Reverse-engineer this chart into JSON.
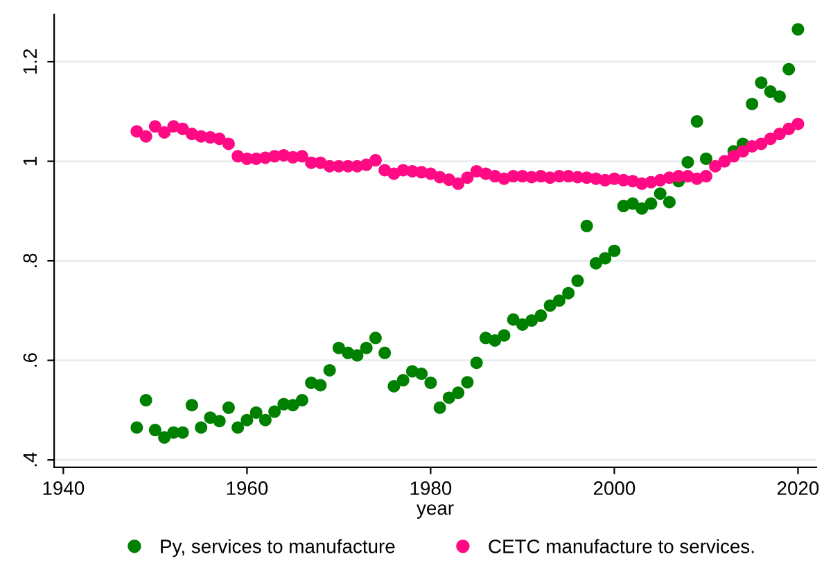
{
  "chart_data": {
    "type": "scatter",
    "xlabel": "year",
    "x": [
      1948,
      1949,
      1950,
      1951,
      1952,
      1953,
      1954,
      1955,
      1956,
      1957,
      1958,
      1959,
      1960,
      1961,
      1962,
      1963,
      1964,
      1965,
      1966,
      1967,
      1968,
      1969,
      1970,
      1971,
      1972,
      1973,
      1974,
      1975,
      1976,
      1977,
      1978,
      1979,
      1980,
      1981,
      1982,
      1983,
      1984,
      1985,
      1986,
      1987,
      1988,
      1989,
      1990,
      1991,
      1992,
      1993,
      1994,
      1995,
      1996,
      1997,
      1998,
      1999,
      2000,
      2001,
      2002,
      2003,
      2004,
      2005,
      2006,
      2007,
      2008,
      2009,
      2010,
      2011,
      2012,
      2013,
      2014,
      2015,
      2016,
      2017,
      2018,
      2019,
      2020
    ],
    "series": [
      {
        "name": "Py, services to manufacture",
        "color": "#008000",
        "values": [
          0.465,
          0.52,
          0.46,
          0.445,
          0.455,
          0.455,
          0.51,
          0.465,
          0.485,
          0.478,
          0.505,
          0.465,
          0.48,
          0.495,
          0.48,
          0.497,
          0.512,
          0.51,
          0.52,
          0.555,
          0.55,
          0.58,
          0.625,
          0.615,
          0.61,
          0.625,
          0.645,
          0.615,
          0.548,
          0.56,
          0.578,
          0.573,
          0.555,
          0.505,
          0.525,
          0.535,
          0.556,
          0.595,
          0.645,
          0.64,
          0.65,
          0.682,
          0.672,
          0.68,
          0.69,
          0.71,
          0.72,
          0.735,
          0.76,
          0.87,
          0.795,
          0.805,
          0.82,
          0.91,
          0.915,
          0.905,
          0.915,
          0.935,
          0.918,
          0.96,
          0.998,
          1.08,
          1.005,
          null,
          null,
          1.02,
          1.035,
          1.115,
          1.158,
          1.14,
          1.13,
          1.185,
          1.265
        ]
      },
      {
        "name": "CETC manufacture to services.",
        "color": "#ff0a84",
        "values": [
          1.06,
          1.05,
          1.07,
          1.058,
          1.07,
          1.065,
          1.055,
          1.05,
          1.048,
          1.045,
          1.035,
          1.01,
          1.005,
          1.005,
          1.007,
          1.01,
          1.012,
          1.008,
          1.01,
          0.997,
          0.997,
          0.99,
          0.99,
          0.99,
          0.99,
          0.993,
          1.002,
          0.982,
          0.975,
          0.982,
          0.98,
          0.978,
          0.975,
          0.968,
          0.963,
          0.955,
          0.967,
          0.98,
          0.975,
          0.97,
          0.965,
          0.97,
          0.97,
          0.968,
          0.97,
          0.967,
          0.97,
          0.97,
          0.968,
          0.967,
          0.965,
          0.962,
          0.965,
          0.962,
          0.96,
          0.955,
          0.958,
          0.962,
          0.967,
          0.97,
          0.97,
          0.965,
          0.97,
          0.99,
          1.0,
          1.01,
          1.02,
          1.03,
          1.035,
          1.045,
          1.055,
          1.065,
          1.075
        ]
      }
    ],
    "xlim": [
      1939,
      2022
    ],
    "xticks": [
      1940,
      1960,
      1980,
      2000,
      2020
    ],
    "ylim": [
      0.385,
      1.295
    ],
    "yticks": [
      {
        "value": 0.4,
        "label": ".4"
      },
      {
        "value": 0.6,
        "label": ".6"
      },
      {
        "value": 0.8,
        "label": ".8"
      },
      {
        "value": 1,
        "label": "1"
      },
      {
        "value": 1.2,
        "label": "1.2"
      }
    ],
    "grid": "y",
    "legend": "bottom",
    "marker": "circle"
  }
}
